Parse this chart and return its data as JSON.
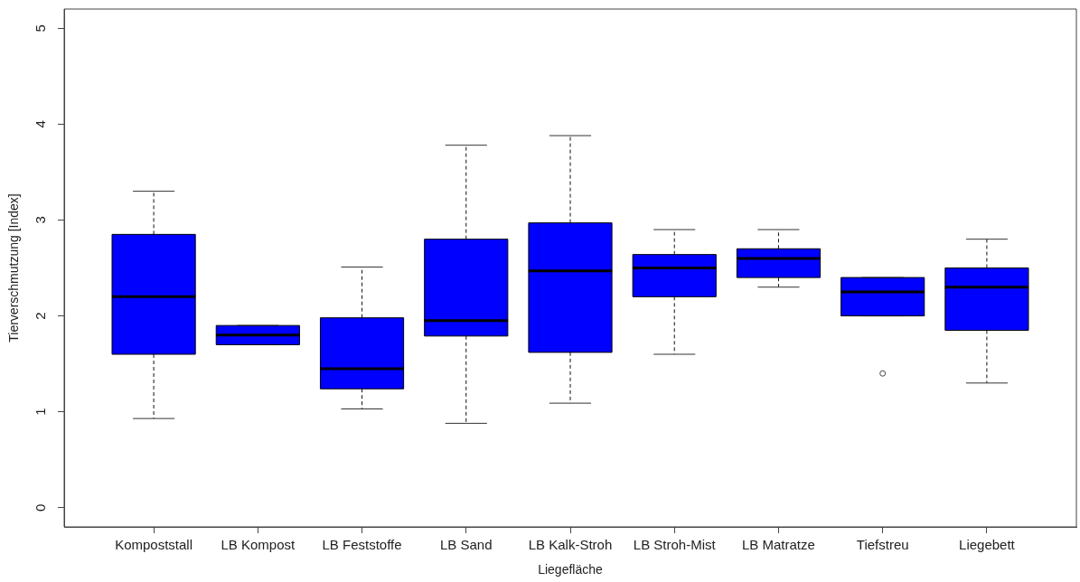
{
  "chart_data": {
    "type": "box",
    "xlabel": "Liegefläche",
    "ylabel": "Tierverschmutzung [Index]",
    "categories": [
      "Kompoststall",
      "LB Kompost",
      "LB Feststoffe",
      "LB Sand",
      "LB Kalk-Stroh",
      "LB Stroh-Mist",
      "LB Matratze",
      "Tiefstreu",
      "Liegebett"
    ],
    "color": "#0000ff",
    "boxes": [
      {
        "low": 0.93,
        "q1": 1.6,
        "median": 2.2,
        "q3": 2.85,
        "high": 3.3
      },
      {
        "low": 1.7,
        "q1": 1.7,
        "median": 1.8,
        "q3": 1.9,
        "high": 1.9
      },
      {
        "low": 1.03,
        "q1": 1.24,
        "median": 1.45,
        "q3": 1.98,
        "high": 2.51
      },
      {
        "low": 0.88,
        "q1": 1.79,
        "median": 1.95,
        "q3": 2.8,
        "high": 3.78
      },
      {
        "low": 1.09,
        "q1": 1.62,
        "median": 2.47,
        "q3": 2.97,
        "high": 3.88
      },
      {
        "low": 1.6,
        "q1": 2.2,
        "median": 2.5,
        "q3": 2.64,
        "high": 2.9
      },
      {
        "low": 2.3,
        "q1": 2.4,
        "median": 2.6,
        "q3": 2.7,
        "high": 2.9
      },
      {
        "low": 2.0,
        "q1": 2.0,
        "median": 2.25,
        "q3": 2.4,
        "high": 2.4,
        "outliers": [
          1.4
        ]
      },
      {
        "low": 1.3,
        "q1": 1.85,
        "median": 2.3,
        "q3": 2.5,
        "high": 2.8
      }
    ],
    "ylim": [
      -0.2,
      5.2
    ],
    "yticks": [
      0,
      1,
      2,
      3,
      4,
      5
    ]
  }
}
